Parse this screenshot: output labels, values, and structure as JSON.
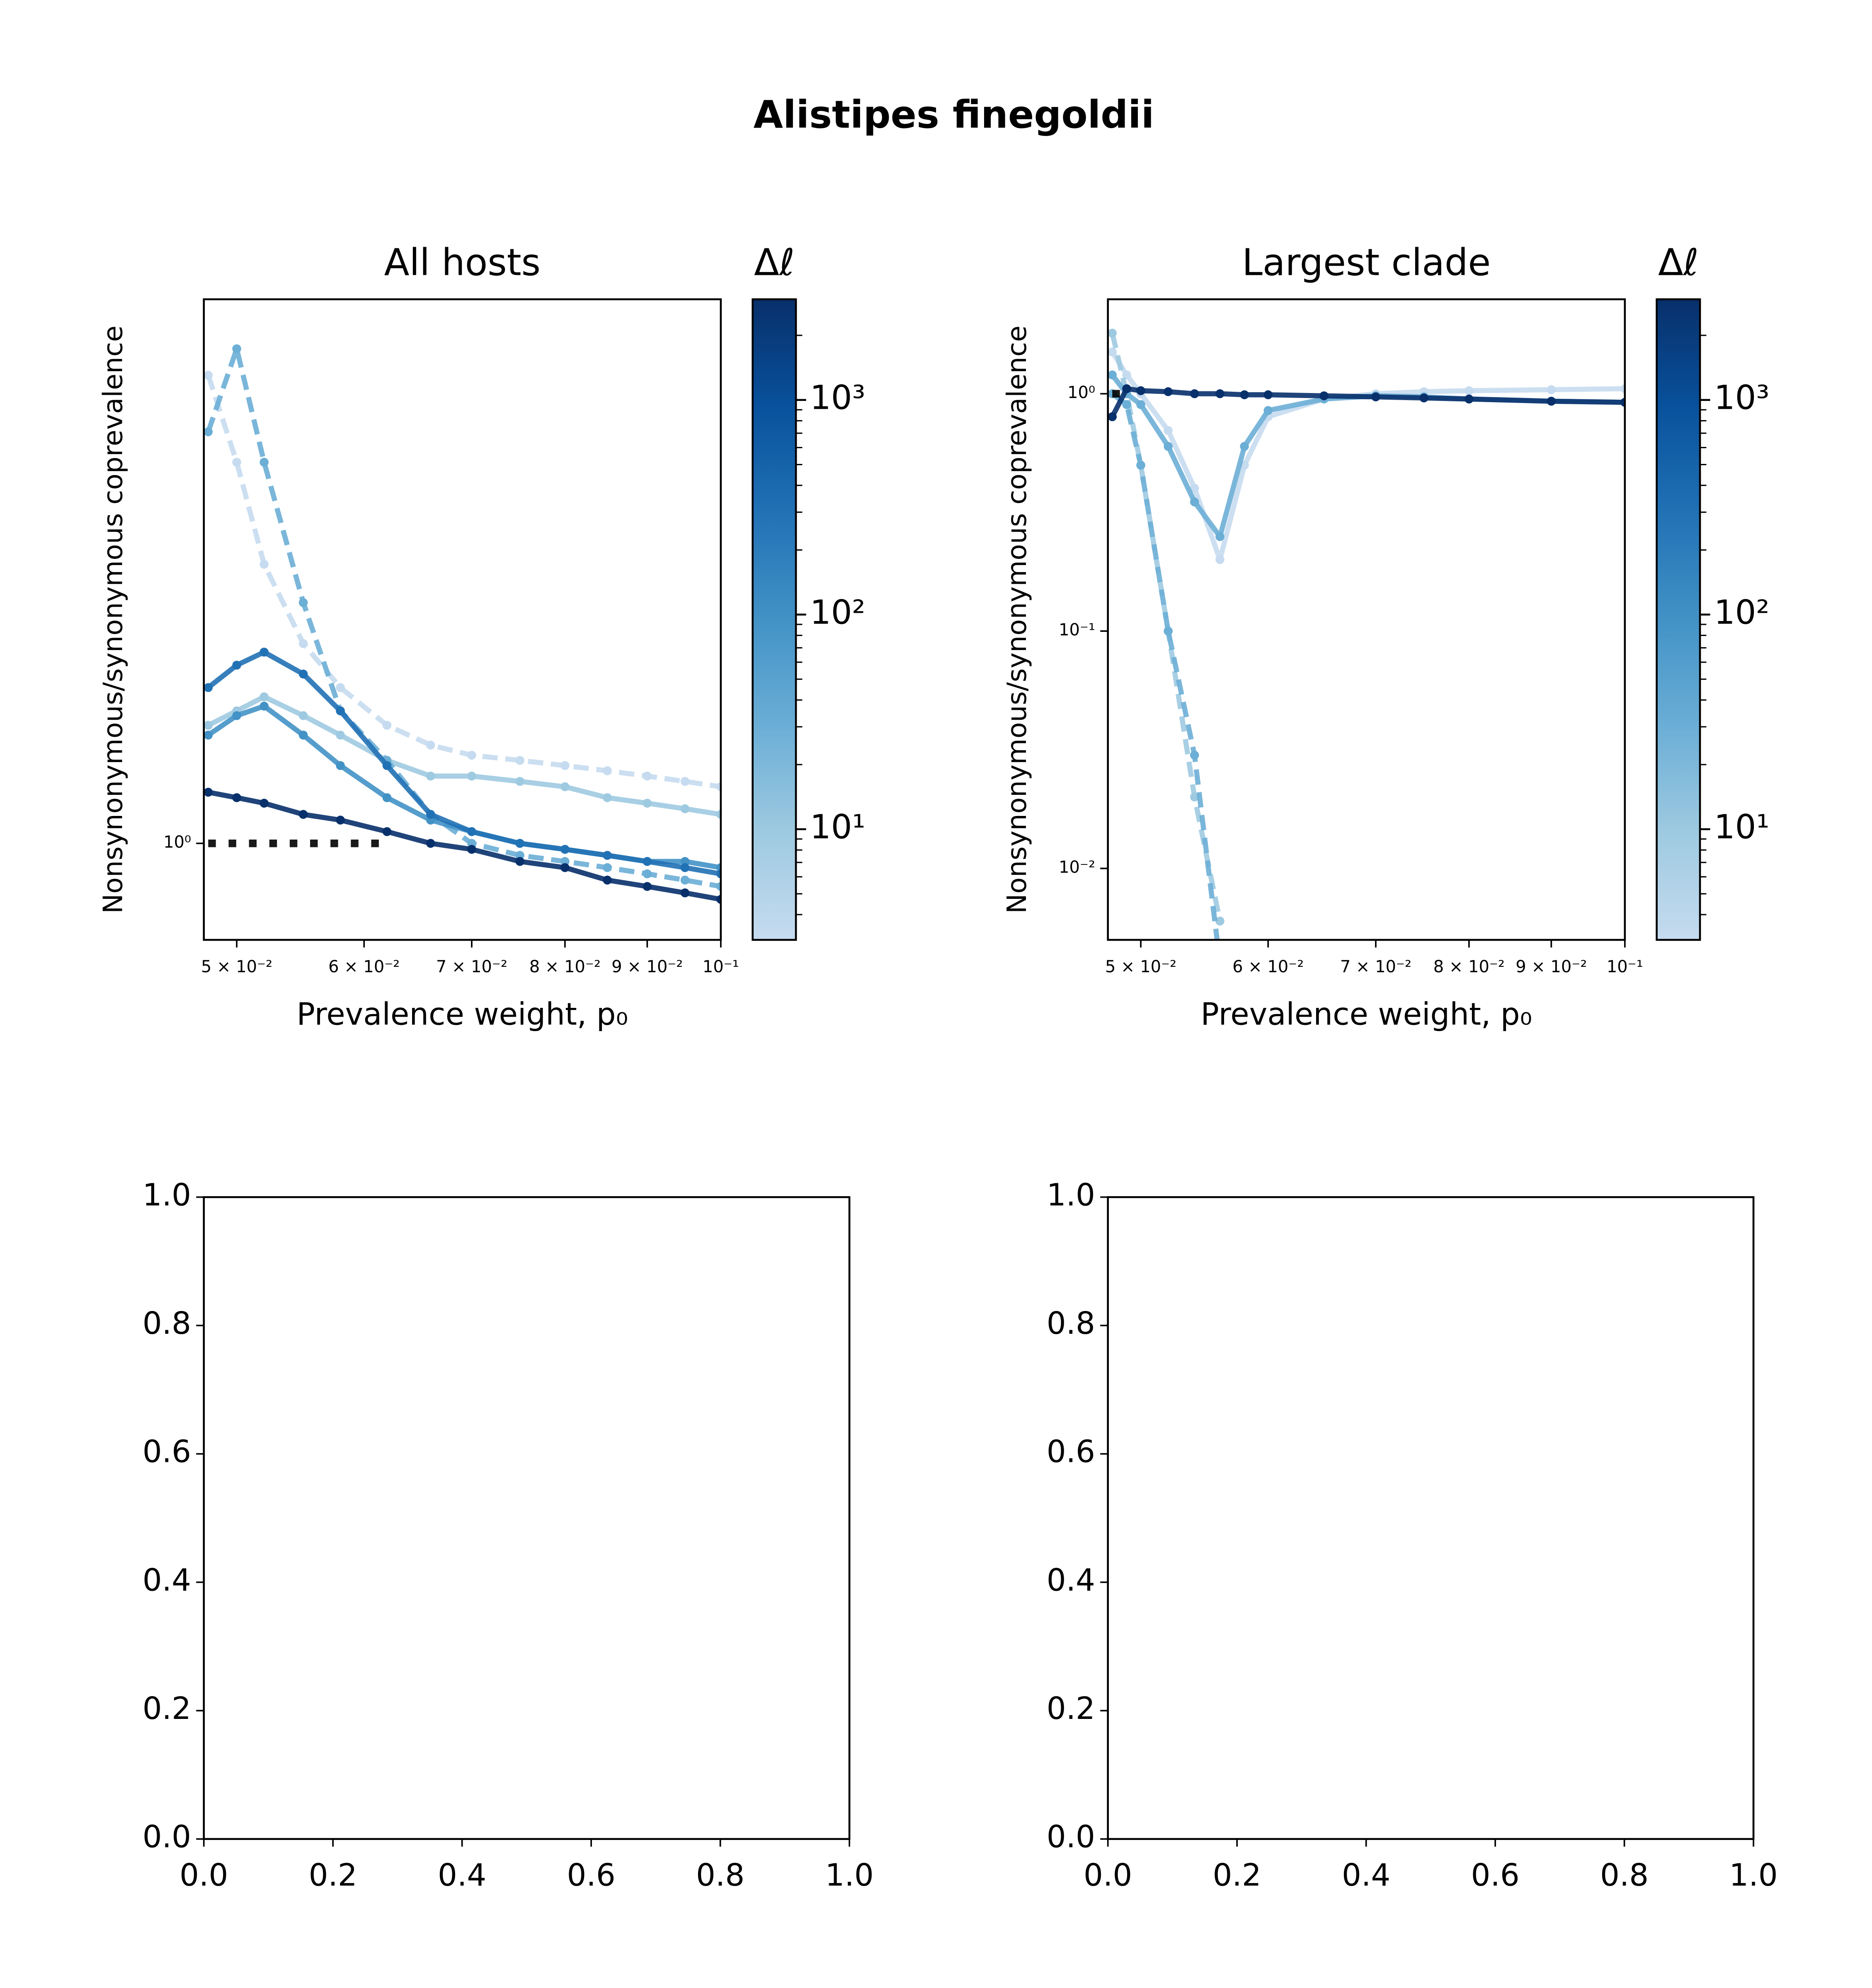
{
  "title": "Alistipes finegoldii",
  "chart_data": [
    {
      "type": "line",
      "title": "All hosts",
      "xlabel": "Prevalence weight, p₀",
      "ylabel": "Nonsynonymous/synonymous coprevalence",
      "xscale": "log",
      "yscale": "log",
      "xlim": [
        0.0477,
        0.1
      ],
      "ylim": [
        0.85,
        2.5
      ],
      "xticks": [
        {
          "value": 0.05,
          "label": "5 × 10⁻²"
        },
        {
          "value": 0.06,
          "label": "6 × 10⁻²"
        },
        {
          "value": 0.07,
          "label": "7 × 10⁻²"
        },
        {
          "value": 0.08,
          "label": "8 × 10⁻²"
        },
        {
          "value": 0.09,
          "label": "9 × 10⁻²"
        },
        {
          "value": 0.1,
          "label": "10⁻¹"
        }
      ],
      "yticks": [
        {
          "value": 1,
          "label": "10⁰"
        }
      ],
      "x": [
        0.048,
        0.05,
        0.052,
        0.055,
        0.058,
        0.062,
        0.066,
        0.07,
        0.075,
        0.08,
        0.085,
        0.09,
        0.095,
        0.1
      ],
      "series": [
        {
          "color": "#c6dbef",
          "style": "dashed",
          "values": [
            2.2,
            1.9,
            1.6,
            1.4,
            1.3,
            1.22,
            1.18,
            1.16,
            1.15,
            1.14,
            1.13,
            1.12,
            1.11,
            1.1
          ]
        },
        {
          "color": "#9ecae1",
          "style": "solid",
          "values": [
            1.22,
            1.25,
            1.28,
            1.24,
            1.2,
            1.15,
            1.12,
            1.12,
            1.11,
            1.1,
            1.08,
            1.07,
            1.06,
            1.05
          ]
        },
        {
          "color": "#6baed6",
          "style": "dashed",
          "values": [
            2.0,
            2.3,
            1.9,
            1.5,
            1.25,
            1.15,
            1.05,
            1.0,
            0.98,
            0.97,
            0.96,
            0.95,
            0.94,
            0.93
          ]
        },
        {
          "color": "#4292c6",
          "style": "solid",
          "values": [
            1.2,
            1.24,
            1.26,
            1.2,
            1.14,
            1.08,
            1.04,
            1.02,
            1.0,
            0.99,
            0.98,
            0.97,
            0.97,
            0.96
          ]
        },
        {
          "color": "#2171b5",
          "style": "solid",
          "values": [
            1.3,
            1.35,
            1.38,
            1.33,
            1.25,
            1.14,
            1.05,
            1.02,
            1.0,
            0.99,
            0.98,
            0.97,
            0.96,
            0.95
          ]
        },
        {
          "color": "#08306b",
          "style": "solid",
          "values": [
            1.09,
            1.08,
            1.07,
            1.05,
            1.04,
            1.02,
            1.0,
            0.99,
            0.97,
            0.96,
            0.94,
            0.93,
            0.92,
            0.91
          ]
        },
        {
          "color": "#000000",
          "style": "dotted",
          "values": [
            1,
            1,
            1,
            1,
            1,
            1,
            null,
            null,
            null,
            null,
            null,
            null,
            null,
            null
          ]
        }
      ],
      "colorbar": {
        "label": "Δℓ",
        "scale": "log",
        "lim": [
          3.05,
          2945
        ],
        "colormap": [
          "#c6dbef",
          "#9ecae1",
          "#6baed6",
          "#4292c6",
          "#2171b5",
          "#08519c",
          "#08306b"
        ],
        "ticks": [
          {
            "value": 10,
            "label": "10¹"
          },
          {
            "value": 100,
            "label": "10²"
          },
          {
            "value": 1000,
            "label": "10³"
          }
        ],
        "minor_ticks": [
          4,
          5,
          6,
          7,
          8,
          9,
          20,
          30,
          40,
          50,
          60,
          70,
          80,
          90,
          200,
          300,
          400,
          500,
          600,
          700,
          800,
          900,
          2000
        ]
      }
    },
    {
      "type": "line",
      "title": "Largest clade",
      "xlabel": "Prevalence weight, p₀",
      "ylabel": "Nonsynonymous/synonymous coprevalence",
      "xscale": "log",
      "yscale": "log",
      "xlim": [
        0.0477,
        0.1
      ],
      "ylim": [
        0.005,
        2.5
      ],
      "xticks": [
        {
          "value": 0.05,
          "label": "5 × 10⁻²"
        },
        {
          "value": 0.06,
          "label": "6 × 10⁻²"
        },
        {
          "value": 0.07,
          "label": "7 × 10⁻²"
        },
        {
          "value": 0.08,
          "label": "8 × 10⁻²"
        },
        {
          "value": 0.09,
          "label": "9 × 10⁻²"
        },
        {
          "value": 0.1,
          "label": "10⁻¹"
        }
      ],
      "yticks": [
        {
          "value": 0.01,
          "label": "10⁻²"
        },
        {
          "value": 0.1,
          "label": "10⁻¹"
        },
        {
          "value": 1,
          "label": "10⁰"
        }
      ],
      "x": [
        0.048,
        0.049,
        0.05,
        0.052,
        0.054,
        0.056,
        0.058,
        0.06,
        0.065,
        0.07,
        0.075,
        0.08,
        0.09,
        0.1
      ],
      "series": [
        {
          "color": "#c6dbef",
          "style": "solid",
          "values": [
            1.5,
            1.2,
            1.0,
            0.7,
            0.4,
            0.2,
            0.5,
            0.8,
            0.95,
            1.0,
            1.02,
            1.03,
            1.04,
            1.05
          ]
        },
        {
          "color": "#9ecae1",
          "style": "dashed",
          "values": [
            1.8,
            1.0,
            0.5,
            0.1,
            0.02,
            0.006,
            null,
            null,
            null,
            null,
            null,
            null,
            null,
            null
          ]
        },
        {
          "color": "#6baed6",
          "style": "solid",
          "values": [
            1.2,
            1.0,
            0.9,
            0.6,
            0.35,
            0.25,
            0.6,
            0.85,
            0.95,
            0.98,
            0.97,
            0.95,
            0.93,
            0.92
          ]
        },
        {
          "color": "#6baed6",
          "style": "dashed",
          "values": [
            1.0,
            0.9,
            0.5,
            0.1,
            0.03,
            0.004,
            null,
            null,
            null,
            null,
            null,
            null,
            null,
            null
          ]
        },
        {
          "color": "#08306b",
          "style": "solid",
          "values": [
            0.8,
            1.05,
            1.03,
            1.02,
            1.0,
            1.0,
            0.99,
            0.99,
            0.98,
            0.97,
            0.96,
            0.95,
            0.93,
            0.92
          ]
        },
        {
          "color": "#000000",
          "style": "dotted",
          "values": [
            1,
            1,
            null,
            null,
            null,
            null,
            null,
            null,
            null,
            null,
            null,
            null,
            null,
            null
          ]
        }
      ],
      "colorbar": {
        "label": "Δℓ",
        "scale": "log",
        "lim": [
          3.05,
          2945
        ],
        "colormap": [
          "#c6dbef",
          "#9ecae1",
          "#6baed6",
          "#4292c6",
          "#2171b5",
          "#08519c",
          "#08306b"
        ],
        "ticks": [
          {
            "value": 10,
            "label": "10¹"
          },
          {
            "value": 100,
            "label": "10²"
          },
          {
            "value": 1000,
            "label": "10³"
          }
        ],
        "minor_ticks": [
          4,
          5,
          6,
          7,
          8,
          9,
          20,
          30,
          40,
          50,
          60,
          70,
          80,
          90,
          200,
          300,
          400,
          500,
          600,
          700,
          800,
          900,
          2000
        ]
      }
    },
    {
      "type": "line",
      "xscale": "linear",
      "yscale": "linear",
      "xlim": [
        0,
        1
      ],
      "ylim": [
        0,
        1
      ],
      "xticks": [
        {
          "value": 0,
          "label": "0.0"
        },
        {
          "value": 0.2,
          "label": "0.2"
        },
        {
          "value": 0.4,
          "label": "0.4"
        },
        {
          "value": 0.6,
          "label": "0.6"
        },
        {
          "value": 0.8,
          "label": "0.8"
        },
        {
          "value": 1,
          "label": "1.0"
        }
      ],
      "yticks": [
        {
          "value": 0,
          "label": "0.0"
        },
        {
          "value": 0.2,
          "label": "0.2"
        },
        {
          "value": 0.4,
          "label": "0.4"
        },
        {
          "value": 0.6,
          "label": "0.6"
        },
        {
          "value": 0.8,
          "label": "0.8"
        },
        {
          "value": 1,
          "label": "1.0"
        }
      ],
      "series": []
    },
    {
      "type": "line",
      "xscale": "linear",
      "yscale": "linear",
      "xlim": [
        0,
        1
      ],
      "ylim": [
        0,
        1
      ],
      "xticks": [
        {
          "value": 0,
          "label": "0.0"
        },
        {
          "value": 0.2,
          "label": "0.2"
        },
        {
          "value": 0.4,
          "label": "0.4"
        },
        {
          "value": 0.6,
          "label": "0.6"
        },
        {
          "value": 0.8,
          "label": "0.8"
        },
        {
          "value": 1,
          "label": "1.0"
        }
      ],
      "yticks": [
        {
          "value": 0,
          "label": "0.0"
        },
        {
          "value": 0.2,
          "label": "0.2"
        },
        {
          "value": 0.4,
          "label": "0.4"
        },
        {
          "value": 0.6,
          "label": "0.6"
        },
        {
          "value": 0.8,
          "label": "0.8"
        },
        {
          "value": 1,
          "label": "1.0"
        }
      ],
      "series": []
    }
  ]
}
